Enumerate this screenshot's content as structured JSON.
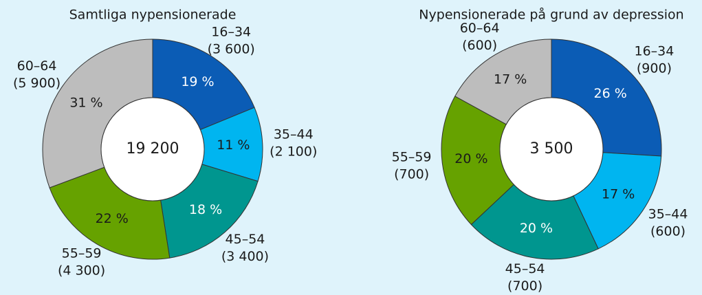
{
  "chart_data": [
    {
      "type": "donut",
      "title": "Samtliga nypensionerade",
      "categories": [
        "16–34",
        "35–44",
        "45–54",
        "55–59",
        "60–64"
      ],
      "values": [
        19,
        11,
        18,
        22,
        31
      ],
      "value_labels": [
        "19 %",
        "11 %",
        "18 %",
        "22 %",
        "31 %"
      ],
      "counts": [
        3600,
        2100,
        3400,
        4300,
        5900
      ],
      "count_labels": [
        "(3 600)",
        "(2 100)",
        "(3 400)",
        "(4 300)",
        "(5 900)"
      ],
      "total": 19200,
      "total_label": "19 200",
      "colors": [
        "#0b5cb5",
        "#00b5f0",
        "#00968f",
        "#66a200",
        "#bdbdbd"
      ],
      "label_colors": [
        "#ffffff",
        "#1a1a1a",
        "#ffffff",
        "#1a1a1a",
        "#1a1a1a"
      ]
    },
    {
      "type": "donut",
      "title": "Nypensionerade på grund av depression",
      "categories": [
        "16–34",
        "35–44",
        "45–54",
        "55–59",
        "60–64"
      ],
      "values": [
        26,
        17,
        20,
        20,
        17
      ],
      "value_labels": [
        "26 %",
        "17 %",
        "20 %",
        "20 %",
        "17 %"
      ],
      "counts": [
        900,
        600,
        700,
        700,
        600
      ],
      "count_labels": [
        "(900)",
        "(600)",
        "(700)",
        "(700)",
        "(600)"
      ],
      "total": 3500,
      "total_label": "3 500",
      "colors": [
        "#0b5cb5",
        "#00b5f0",
        "#00968f",
        "#66a200",
        "#bdbdbd"
      ],
      "label_colors": [
        "#ffffff",
        "#1a1a1a",
        "#ffffff",
        "#1a1a1a",
        "#1a1a1a"
      ]
    }
  ]
}
